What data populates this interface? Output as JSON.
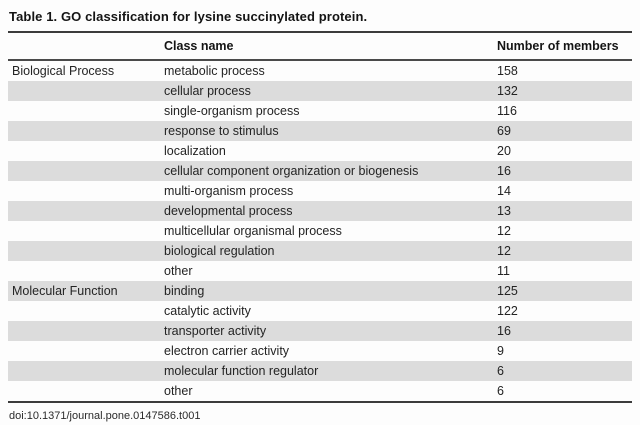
{
  "table": {
    "title": "Table 1. GO classification for lysine succinylated protein.",
    "columns": [
      "",
      "Class name",
      "Number of members"
    ],
    "rows": [
      {
        "category": "Biological Process",
        "class_name": "metabolic process",
        "members": "158"
      },
      {
        "category": "",
        "class_name": "cellular process",
        "members": "132"
      },
      {
        "category": "",
        "class_name": "single-organism process",
        "members": "116"
      },
      {
        "category": "",
        "class_name": "response to stimulus",
        "members": "69"
      },
      {
        "category": "",
        "class_name": "localization",
        "members": "20"
      },
      {
        "category": "",
        "class_name": "cellular component organization or biogenesis",
        "members": "16"
      },
      {
        "category": "",
        "class_name": "multi-organism process",
        "members": "14"
      },
      {
        "category": "",
        "class_name": "developmental process",
        "members": "13"
      },
      {
        "category": "",
        "class_name": "multicellular organismal process",
        "members": "12"
      },
      {
        "category": "",
        "class_name": "biological regulation",
        "members": "12"
      },
      {
        "category": "",
        "class_name": "other",
        "members": "11"
      },
      {
        "category": "Molecular Function",
        "class_name": "binding",
        "members": "125"
      },
      {
        "category": "",
        "class_name": "catalytic activity",
        "members": "122"
      },
      {
        "category": "",
        "class_name": "transporter activity",
        "members": "16"
      },
      {
        "category": "",
        "class_name": "electron carrier activity",
        "members": "9"
      },
      {
        "category": "",
        "class_name": "molecular function regulator",
        "members": "6"
      },
      {
        "category": "",
        "class_name": "other",
        "members": "6"
      }
    ],
    "footer": "doi:10.1371/journal.pone.0147586.t001"
  },
  "colors": {
    "stripe": "#dcdcdc",
    "rule": "#3c3c3c",
    "text": "#242424"
  }
}
